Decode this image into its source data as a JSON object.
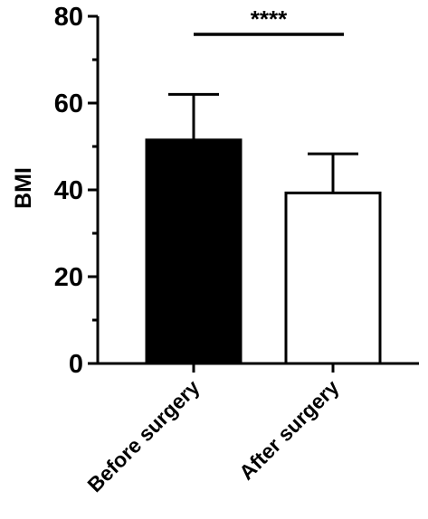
{
  "chart_data": {
    "type": "bar",
    "categories": [
      "Before surgery",
      "After surgery"
    ],
    "values": [
      51.5,
      39.3
    ],
    "error_bars_upper": [
      62.0,
      48.3
    ],
    "bar_colors": [
      "#000000",
      "#ffffff"
    ],
    "bar_edge_color": "#000000",
    "ylabel": "BMI",
    "ylim": [
      0,
      80
    ],
    "yticks": [
      0,
      20,
      40,
      60,
      80
    ],
    "yminor_step": 10,
    "grid": false,
    "significance": {
      "label": "****",
      "between": [
        0,
        1
      ]
    }
  }
}
